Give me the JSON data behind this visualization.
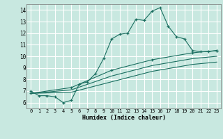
{
  "xlabel": "Humidex (Indice chaleur)",
  "ylabel": "",
  "bg_color": "#c8e8e0",
  "grid_color": "#ffffff",
  "line_color": "#1a6e60",
  "xlim": [
    -0.5,
    23.5
  ],
  "ylim": [
    5.5,
    14.5
  ],
  "xticks": [
    0,
    1,
    2,
    3,
    4,
    5,
    6,
    7,
    8,
    9,
    10,
    11,
    12,
    13,
    14,
    15,
    16,
    17,
    18,
    19,
    20,
    21,
    22,
    23
  ],
  "yticks": [
    6,
    7,
    8,
    9,
    10,
    11,
    12,
    13,
    14
  ],
  "series": [
    {
      "x": [
        0,
        1,
        2,
        3,
        4,
        5,
        6,
        7,
        8,
        9,
        10,
        11,
        12,
        13,
        14,
        15,
        16,
        17,
        18,
        19,
        20,
        21,
        22,
        23
      ],
      "y": [
        7.0,
        6.6,
        6.6,
        6.5,
        6.0,
        6.2,
        7.6,
        7.8,
        8.5,
        9.8,
        11.5,
        11.9,
        12.0,
        13.2,
        13.1,
        13.9,
        14.2,
        12.6,
        11.7,
        11.5,
        10.5,
        10.4,
        10.4,
        10.5
      ],
      "marker": true
    },
    {
      "x": [
        0,
        5,
        10,
        15,
        20,
        23
      ],
      "y": [
        6.8,
        7.3,
        8.8,
        9.7,
        10.3,
        10.5
      ],
      "marker": true
    },
    {
      "x": [
        0,
        5,
        10,
        15,
        20,
        23
      ],
      "y": [
        6.8,
        7.1,
        8.3,
        9.2,
        9.8,
        10.0
      ],
      "marker": false
    },
    {
      "x": [
        0,
        5,
        10,
        15,
        20,
        23
      ],
      "y": [
        6.8,
        6.9,
        7.8,
        8.7,
        9.3,
        9.5
      ],
      "marker": false
    }
  ]
}
